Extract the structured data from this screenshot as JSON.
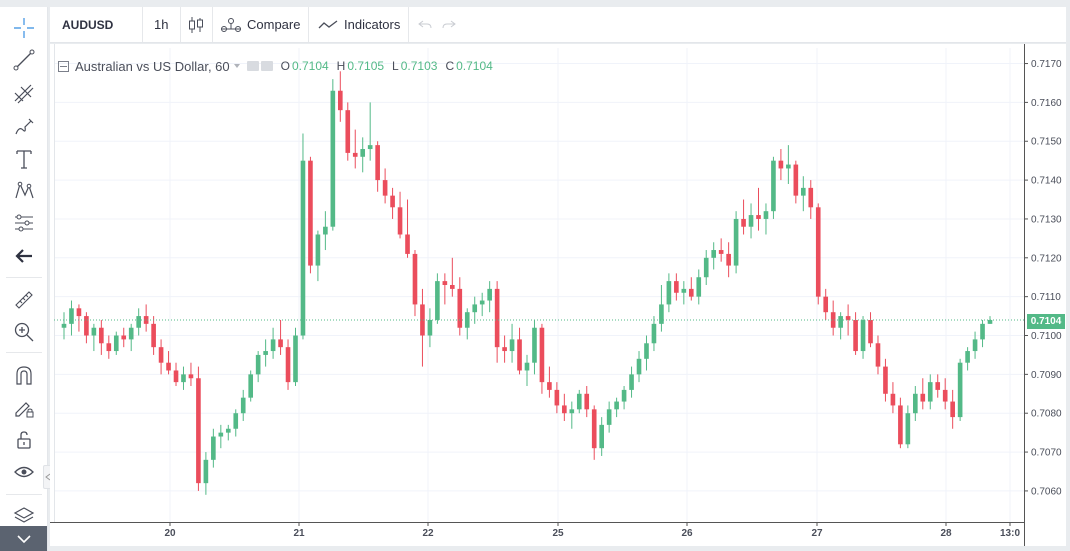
{
  "toolbar": {
    "symbol": "AUDUSD",
    "interval": "1h",
    "compare_label": "Compare",
    "indicators_label": "Indicators"
  },
  "legend": {
    "title": "Australian vs US Dollar, 60",
    "open_label": "O",
    "open_value": "0.7104",
    "high_label": "H",
    "high_value": "0.7105",
    "low_label": "L",
    "low_value": "0.7103",
    "close_label": "C",
    "close_value": "0.7104"
  },
  "last_price_label": "0.7104",
  "colors": {
    "up": "#53b987",
    "down": "#eb4d5c",
    "grid": "#f0f3fa",
    "price_line": "#53b987"
  },
  "sidebar_tools": [
    "crosshair-icon",
    "trend-line-icon",
    "fib-retracement-icon",
    "brush-icon",
    "text-icon",
    "pattern-icon",
    "prediction-icon",
    "back-arrow-icon",
    "ruler-icon",
    "zoom-in-icon",
    "magnet-icon",
    "lock-drawing-icon",
    "unlock-icon",
    "eye-icon",
    "layers-icon"
  ],
  "chart_data": {
    "type": "candlestick",
    "title": "Australian vs US Dollar, 60",
    "y_ticks": [
      "0.7170",
      "0.7160",
      "0.7150",
      "0.7140",
      "0.7130",
      "0.7120",
      "0.7110",
      "0.7100",
      "0.7090",
      "0.7080",
      "0.7070",
      "0.7060"
    ],
    "x_ticks": [
      "20",
      "21",
      "22",
      "25",
      "26",
      "27",
      "28",
      "13:0"
    ],
    "ylim": [
      0.7052,
      0.7174
    ],
    "last_price": 0.7104,
    "candles": [
      [
        0.7102,
        0.7106,
        0.7099,
        0.7103
      ],
      [
        0.7103,
        0.7109,
        0.71,
        0.7107
      ],
      [
        0.7107,
        0.7108,
        0.7101,
        0.7105
      ],
      [
        0.7105,
        0.7106,
        0.7098,
        0.71
      ],
      [
        0.71,
        0.7103,
        0.7096,
        0.7102
      ],
      [
        0.7102,
        0.7104,
        0.7095,
        0.7098
      ],
      [
        0.7098,
        0.71,
        0.7094,
        0.7096
      ],
      [
        0.7096,
        0.7101,
        0.7095,
        0.71
      ],
      [
        0.71,
        0.7102,
        0.7097,
        0.7099
      ],
      [
        0.7099,
        0.7103,
        0.7096,
        0.7102
      ],
      [
        0.7102,
        0.7107,
        0.71,
        0.7105
      ],
      [
        0.7105,
        0.7108,
        0.7101,
        0.7103
      ],
      [
        0.7103,
        0.7105,
        0.7095,
        0.7097
      ],
      [
        0.7097,
        0.7099,
        0.709,
        0.7093
      ],
      [
        0.7093,
        0.7096,
        0.709,
        0.7091
      ],
      [
        0.7091,
        0.7093,
        0.7087,
        0.7088
      ],
      [
        0.7088,
        0.7092,
        0.7086,
        0.709
      ],
      [
        0.709,
        0.7093,
        0.7087,
        0.7089
      ],
      [
        0.7089,
        0.7092,
        0.706,
        0.7062
      ],
      [
        0.7062,
        0.707,
        0.7059,
        0.7068
      ],
      [
        0.7068,
        0.7076,
        0.7066,
        0.7074
      ],
      [
        0.7074,
        0.7077,
        0.7071,
        0.7075
      ],
      [
        0.7075,
        0.7077,
        0.7073,
        0.7076
      ],
      [
        0.7076,
        0.7081,
        0.7074,
        0.708
      ],
      [
        0.708,
        0.7086,
        0.7078,
        0.7084
      ],
      [
        0.7084,
        0.7091,
        0.7083,
        0.709
      ],
      [
        0.709,
        0.7096,
        0.7088,
        0.7095
      ],
      [
        0.7095,
        0.7099,
        0.7092,
        0.7096
      ],
      [
        0.7096,
        0.7102,
        0.7094,
        0.7099
      ],
      [
        0.7099,
        0.7104,
        0.7095,
        0.7097
      ],
      [
        0.7097,
        0.7099,
        0.7086,
        0.7088
      ],
      [
        0.7088,
        0.7102,
        0.7087,
        0.71
      ],
      [
        0.71,
        0.7152,
        0.7099,
        0.7145
      ],
      [
        0.7145,
        0.7146,
        0.7116,
        0.7118
      ],
      [
        0.7118,
        0.7127,
        0.7114,
        0.7126
      ],
      [
        0.7126,
        0.7132,
        0.7122,
        0.7128
      ],
      [
        0.7128,
        0.7166,
        0.7127,
        0.7163
      ],
      [
        0.7163,
        0.7168,
        0.7155,
        0.7158
      ],
      [
        0.7158,
        0.716,
        0.7145,
        0.7147
      ],
      [
        0.7147,
        0.7153,
        0.7143,
        0.7146
      ],
      [
        0.7146,
        0.7151,
        0.7142,
        0.7148
      ],
      [
        0.7148,
        0.716,
        0.7145,
        0.7149
      ],
      [
        0.7149,
        0.715,
        0.7137,
        0.714
      ],
      [
        0.714,
        0.7143,
        0.7134,
        0.7136
      ],
      [
        0.7136,
        0.7138,
        0.713,
        0.7133
      ],
      [
        0.7133,
        0.7137,
        0.7125,
        0.7126
      ],
      [
        0.7126,
        0.7135,
        0.712,
        0.7121
      ],
      [
        0.7121,
        0.7122,
        0.7105,
        0.7108
      ],
      [
        0.7108,
        0.7112,
        0.7092,
        0.71
      ],
      [
        0.71,
        0.7107,
        0.7097,
        0.7104
      ],
      [
        0.7104,
        0.7116,
        0.7103,
        0.7114
      ],
      [
        0.7114,
        0.7116,
        0.7108,
        0.7113
      ],
      [
        0.7113,
        0.712,
        0.711,
        0.7112
      ],
      [
        0.7112,
        0.7115,
        0.71,
        0.7102
      ],
      [
        0.7102,
        0.7107,
        0.7099,
        0.7106
      ],
      [
        0.7106,
        0.711,
        0.7103,
        0.7108
      ],
      [
        0.7108,
        0.7111,
        0.7105,
        0.7109
      ],
      [
        0.7109,
        0.7114,
        0.7106,
        0.7112
      ],
      [
        0.7112,
        0.7114,
        0.7093,
        0.7097
      ],
      [
        0.7097,
        0.71,
        0.7093,
        0.7096
      ],
      [
        0.7096,
        0.7103,
        0.7093,
        0.7099
      ],
      [
        0.7099,
        0.7102,
        0.709,
        0.7091
      ],
      [
        0.7091,
        0.7095,
        0.7087,
        0.7093
      ],
      [
        0.7093,
        0.7104,
        0.709,
        0.7102
      ],
      [
        0.7102,
        0.7103,
        0.7085,
        0.7088
      ],
      [
        0.7088,
        0.7092,
        0.7084,
        0.7086
      ],
      [
        0.7086,
        0.7088,
        0.708,
        0.7082
      ],
      [
        0.7082,
        0.7085,
        0.7078,
        0.708
      ],
      [
        0.708,
        0.7083,
        0.7076,
        0.7081
      ],
      [
        0.7081,
        0.7086,
        0.708,
        0.7085
      ],
      [
        0.7085,
        0.7087,
        0.7079,
        0.7081
      ],
      [
        0.7081,
        0.7082,
        0.7068,
        0.7071
      ],
      [
        0.7071,
        0.7079,
        0.7069,
        0.7077
      ],
      [
        0.7077,
        0.7083,
        0.7075,
        0.7081
      ],
      [
        0.7081,
        0.7084,
        0.7079,
        0.7083
      ],
      [
        0.7083,
        0.7087,
        0.7081,
        0.7086
      ],
      [
        0.7086,
        0.7092,
        0.7084,
        0.709
      ],
      [
        0.709,
        0.7096,
        0.7088,
        0.7094
      ],
      [
        0.7094,
        0.71,
        0.7091,
        0.7098
      ],
      [
        0.7098,
        0.7105,
        0.7096,
        0.7103
      ],
      [
        0.7103,
        0.7113,
        0.7101,
        0.7108
      ],
      [
        0.7108,
        0.7116,
        0.7106,
        0.7114
      ],
      [
        0.7114,
        0.7116,
        0.7109,
        0.7111
      ],
      [
        0.7111,
        0.7114,
        0.7108,
        0.7112
      ],
      [
        0.7112,
        0.7115,
        0.7109,
        0.711
      ],
      [
        0.711,
        0.7117,
        0.7108,
        0.7115
      ],
      [
        0.7115,
        0.7122,
        0.7113,
        0.712
      ],
      [
        0.712,
        0.7124,
        0.7117,
        0.7122
      ],
      [
        0.7122,
        0.7125,
        0.7119,
        0.7121
      ],
      [
        0.7121,
        0.7124,
        0.7115,
        0.7118
      ],
      [
        0.7118,
        0.7132,
        0.7116,
        0.713
      ],
      [
        0.713,
        0.7135,
        0.7126,
        0.7128
      ],
      [
        0.7128,
        0.7134,
        0.7125,
        0.7131
      ],
      [
        0.7131,
        0.7138,
        0.7127,
        0.713
      ],
      [
        0.713,
        0.7134,
        0.7126,
        0.7132
      ],
      [
        0.7132,
        0.7146,
        0.713,
        0.7145
      ],
      [
        0.7145,
        0.7148,
        0.714,
        0.7143
      ],
      [
        0.7143,
        0.7149,
        0.7139,
        0.7144
      ],
      [
        0.7144,
        0.7145,
        0.7134,
        0.7136
      ],
      [
        0.7136,
        0.7141,
        0.7132,
        0.7138
      ],
      [
        0.7138,
        0.714,
        0.713,
        0.7133
      ],
      [
        0.7133,
        0.7134,
        0.7108,
        0.711
      ],
      [
        0.711,
        0.7112,
        0.7104,
        0.7106
      ],
      [
        0.7106,
        0.7109,
        0.71,
        0.7102
      ],
      [
        0.7102,
        0.7106,
        0.7099,
        0.7105
      ],
      [
        0.7105,
        0.7108,
        0.71,
        0.7104
      ],
      [
        0.7104,
        0.7106,
        0.7095,
        0.7096
      ],
      [
        0.7096,
        0.7105,
        0.7094,
        0.7104
      ],
      [
        0.7104,
        0.7106,
        0.7097,
        0.7098
      ],
      [
        0.7098,
        0.71,
        0.709,
        0.7092
      ],
      [
        0.7092,
        0.7094,
        0.7083,
        0.7085
      ],
      [
        0.7085,
        0.7088,
        0.708,
        0.7082
      ],
      [
        0.7082,
        0.7084,
        0.7071,
        0.7072
      ],
      [
        0.7072,
        0.7082,
        0.7071,
        0.708
      ],
      [
        0.708,
        0.7087,
        0.7078,
        0.7085
      ],
      [
        0.7085,
        0.7089,
        0.7081,
        0.7083
      ],
      [
        0.7083,
        0.709,
        0.7081,
        0.7088
      ],
      [
        0.7088,
        0.709,
        0.7084,
        0.7086
      ],
      [
        0.7086,
        0.7089,
        0.7081,
        0.7083
      ],
      [
        0.7083,
        0.7086,
        0.7076,
        0.7079
      ],
      [
        0.7079,
        0.7094,
        0.7078,
        0.7093
      ],
      [
        0.7093,
        0.7097,
        0.7091,
        0.7096
      ],
      [
        0.7096,
        0.7101,
        0.7094,
        0.7099
      ],
      [
        0.7099,
        0.7104,
        0.7097,
        0.7103
      ],
      [
        0.7103,
        0.7105,
        0.7103,
        0.7104
      ]
    ]
  }
}
